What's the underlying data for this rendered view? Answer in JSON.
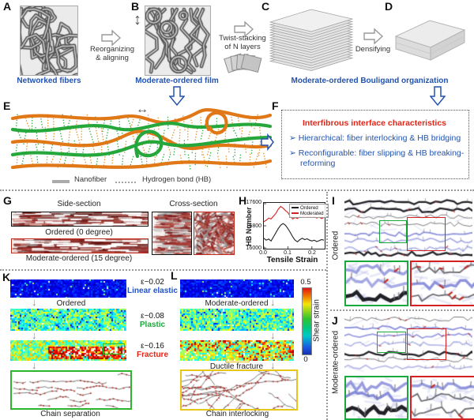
{
  "panels": {
    "A": {
      "label": "A",
      "caption": "Networked fibers"
    },
    "B": {
      "label": "B",
      "caption": "Moderate-ordered film"
    },
    "C": {
      "label": "C"
    },
    "D": {
      "label": "D"
    },
    "cd_caption": "Moderate-ordered Bouligand organization",
    "arrow_ab": {
      "line1": "Reorganizing",
      "line2": "& aligning"
    },
    "arrow_bc": {
      "line1": "Twist-stacking",
      "line2": "of N layers"
    },
    "arrow_cd": {
      "label": "Densifying"
    },
    "E": {
      "label": "E",
      "legend_fiber": "Nanofiber",
      "legend_hb": "Hydrogen bond (HB)"
    },
    "F": {
      "label": "F",
      "title": "Interfibrous interface characteristics",
      "bullet_marker": "➢",
      "bullets": [
        "Hierarchical: fiber interlocking & HB bridging",
        "Reconfigurable: fiber slipping & HB breaking-reforming"
      ]
    },
    "G": {
      "label": "G",
      "side_heading": "Side-section",
      "cross_heading": "Cross-section",
      "ordered_caption": "Ordered (0 degree)",
      "moderate_caption": "Moderate-ordered (15 degree)"
    },
    "H": {
      "label": "H"
    },
    "I": {
      "label": "I",
      "side_label": "Ordered"
    },
    "J": {
      "label": "J",
      "side_label": "Moderate-ordered"
    },
    "K": {
      "label": "K",
      "strip_caption": "Ordered",
      "inset_caption": "Chain separation",
      "stages": [
        {
          "strain": "ε~0.02",
          "name": "Linear elastic"
        },
        {
          "strain": "ε~0.08",
          "name": "Plastic"
        },
        {
          "strain": "ε~0.16",
          "name": "Fracture"
        }
      ]
    },
    "L": {
      "label": "L",
      "strip_caption": "Moderate-ordered",
      "fracture_label": "Ductile fracture",
      "inset_caption": "Chain interlocking"
    },
    "colorbar": {
      "max": "0.5",
      "min": "0",
      "label": "Shear strain"
    }
  },
  "chart_data": {
    "type": "line",
    "title": "",
    "xlabel": "Tensile Strain",
    "ylabel": "HB Number",
    "xlim": [
      0,
      0.25
    ],
    "ylim": [
      16000,
      17600
    ],
    "xtick_labels": [
      "0.0",
      "0.1",
      "0.2"
    ],
    "xtick_values": [
      0,
      0.1,
      0.2
    ],
    "ytick_labels": [
      "16000",
      "16800",
      "17600"
    ],
    "ytick_values": [
      16000,
      16800,
      17600
    ],
    "legend_position": "top-right",
    "x": [
      0,
      0.01,
      0.02,
      0.03,
      0.04,
      0.05,
      0.06,
      0.07,
      0.08,
      0.09,
      0.1,
      0.11,
      0.12,
      0.13,
      0.14,
      0.15,
      0.16,
      0.17,
      0.18,
      0.19,
      0.2,
      0.21,
      0.22,
      0.23,
      0.24,
      0.25
    ],
    "series": [
      {
        "name": "Ordered",
        "color": "#222222",
        "values": [
          16350,
          16280,
          16320,
          16250,
          16400,
          16550,
          16700,
          16820,
          16880,
          16820,
          16700,
          16560,
          16400,
          16280,
          16220,
          16300,
          16350,
          16300,
          16330,
          16280,
          16250,
          16280,
          16230,
          16260,
          16300,
          16280
        ]
      },
      {
        "name": "Moderated",
        "color": "#d82020",
        "values": [
          16950,
          17000,
          17080,
          17050,
          17150,
          17250,
          17400,
          17500,
          17440,
          17350,
          17280,
          17150,
          17050,
          17100,
          17060,
          17150,
          17100,
          17180,
          17120,
          17160,
          17100,
          17140,
          17080,
          17120,
          17060,
          17100
        ]
      }
    ]
  },
  "colors": {
    "accent_blue": "#2353AE",
    "accent_red": "#E02518",
    "stage_blue": "#2353C9",
    "stage_green": "#1FA83E",
    "stage_red": "#E02518",
    "fiber_orange": "#E07818",
    "fiber_green": "#25A73C",
    "strain_map_scale": "jet (0=blue, 0.5=green, 1=red)"
  }
}
